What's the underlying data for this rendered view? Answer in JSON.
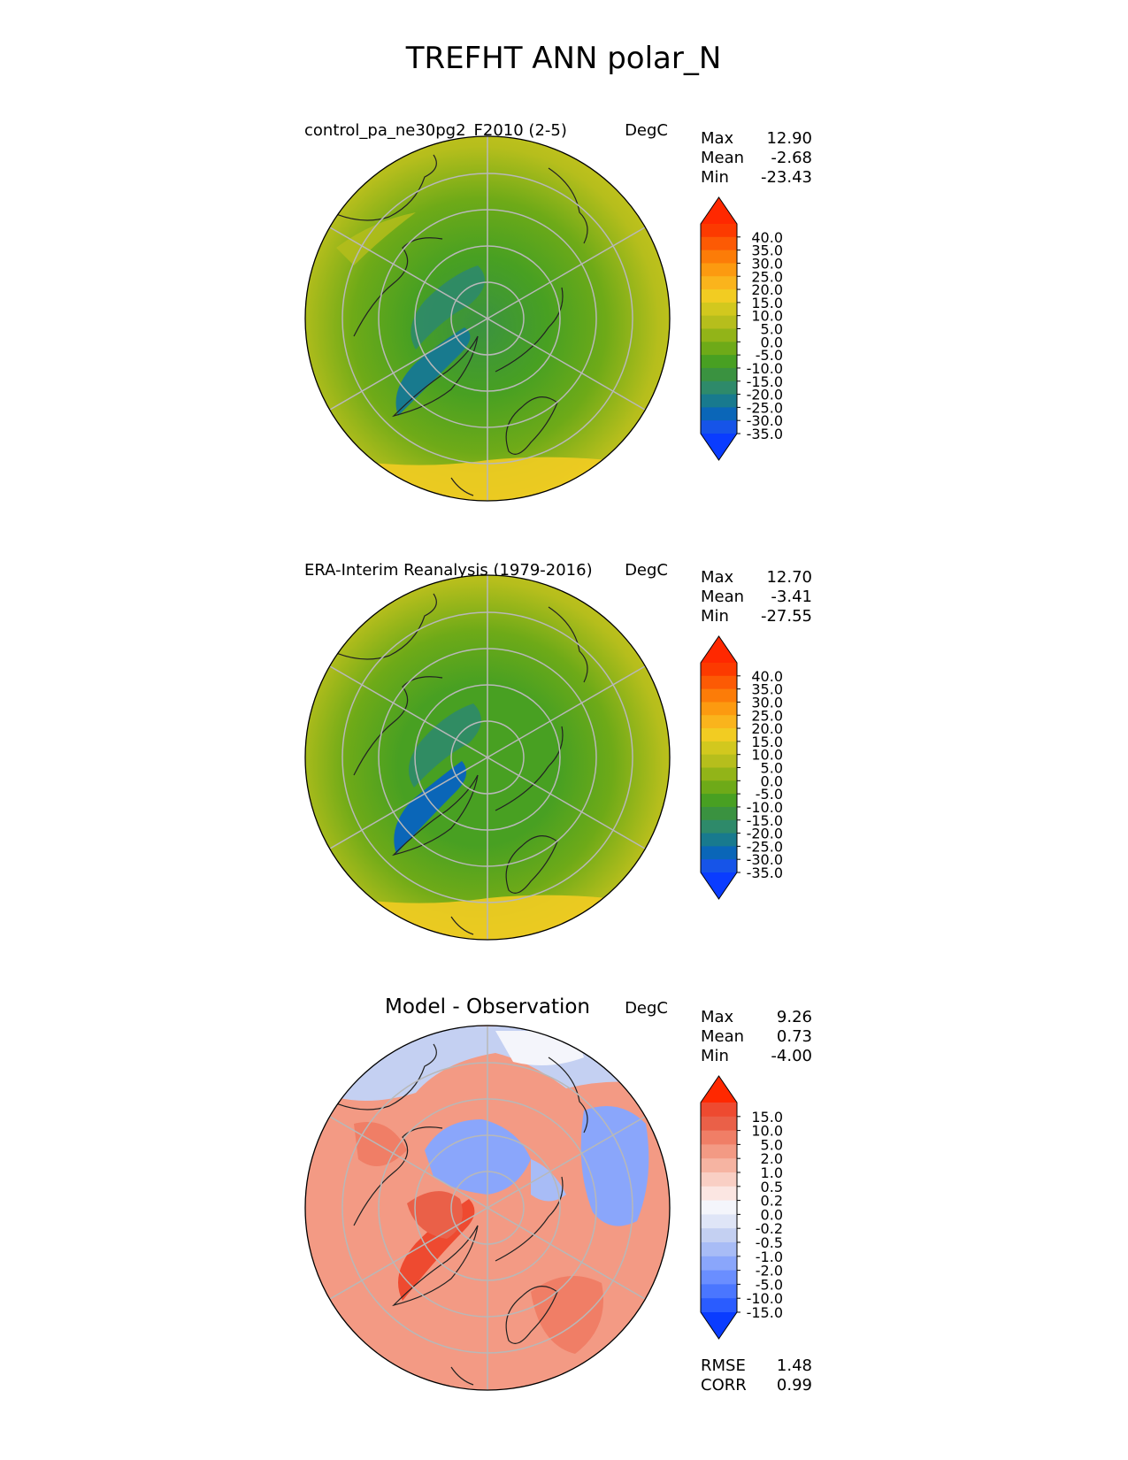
{
  "title": "TREFHT ANN polar_N",
  "colors": {
    "land_outline": "#222222",
    "grid": "#b8b8b8",
    "sequential_scale": [
      "#0a3cff",
      "#1654e8",
      "#0a66b8",
      "#187a8e",
      "#2e8a6a",
      "#3a9240",
      "#48a022",
      "#6eaa18",
      "#92b418",
      "#b6be1c",
      "#d2c81e",
      "#f2cc22",
      "#fab41c",
      "#fc9a10",
      "#fc7c08",
      "#fc5a04",
      "#fc3a00",
      "#ff2800"
    ],
    "diverging_scale": [
      "#0a3cff",
      "#2a5cff",
      "#4a76ff",
      "#6a8eff",
      "#8aa6fb",
      "#a8bcf6",
      "#c4d0f2",
      "#dfe5f7",
      "#f4f5fb",
      "#fbe6e2",
      "#f9cfc4",
      "#f6b4a2",
      "#f39a84",
      "#f07e66",
      "#ea6048",
      "#ee4a30",
      "#ff2800"
    ]
  },
  "chart_data": [
    {
      "type": "heatmap",
      "projection": "north polar stereographic",
      "title": "control_pa_ne30pg2_F2010 (2-5)",
      "units": "DegC",
      "stats": [
        {
          "label": "Max",
          "value": "12.90"
        },
        {
          "label": "Mean",
          "value": "-2.68"
        },
        {
          "label": "Min",
          "value": "-23.43"
        }
      ],
      "colorbar": {
        "ticks": [
          "40.0",
          "35.0",
          "30.0",
          "25.0",
          "20.0",
          "15.0",
          "10.0",
          "5.0",
          "0.0",
          "-5.0",
          "-10.0",
          "-15.0",
          "-20.0",
          "-25.0",
          "-30.0",
          "-35.0"
        ],
        "extend": "both"
      }
    },
    {
      "type": "heatmap",
      "projection": "north polar stereographic",
      "title": "ERA-Interim Reanalysis (1979-2016)",
      "units": "DegC",
      "stats": [
        {
          "label": "Max",
          "value": "12.70"
        },
        {
          "label": "Mean",
          "value": "-3.41"
        },
        {
          "label": "Min",
          "value": "-27.55"
        }
      ],
      "colorbar": {
        "ticks": [
          "40.0",
          "35.0",
          "30.0",
          "25.0",
          "20.0",
          "15.0",
          "10.0",
          "5.0",
          "0.0",
          "-5.0",
          "-10.0",
          "-15.0",
          "-20.0",
          "-25.0",
          "-30.0",
          "-35.0"
        ],
        "extend": "both"
      }
    },
    {
      "type": "heatmap",
      "projection": "north polar stereographic",
      "title": "Model - Observation",
      "units": "DegC",
      "stats": [
        {
          "label": "Max",
          "value": "9.26"
        },
        {
          "label": "Mean",
          "value": "0.73"
        },
        {
          "label": "Min",
          "value": "-4.00"
        }
      ],
      "colorbar": {
        "ticks": [
          "15.0",
          "10.0",
          "5.0",
          "2.0",
          "1.0",
          "0.5",
          "0.2",
          "0.0",
          "-0.2",
          "-0.5",
          "-1.0",
          "-2.0",
          "-5.0",
          "-10.0",
          "-15.0"
        ],
        "extend": "both"
      },
      "metrics": [
        {
          "label": "RMSE",
          "value": "1.48"
        },
        {
          "label": "CORR",
          "value": "0.99"
        }
      ]
    }
  ]
}
